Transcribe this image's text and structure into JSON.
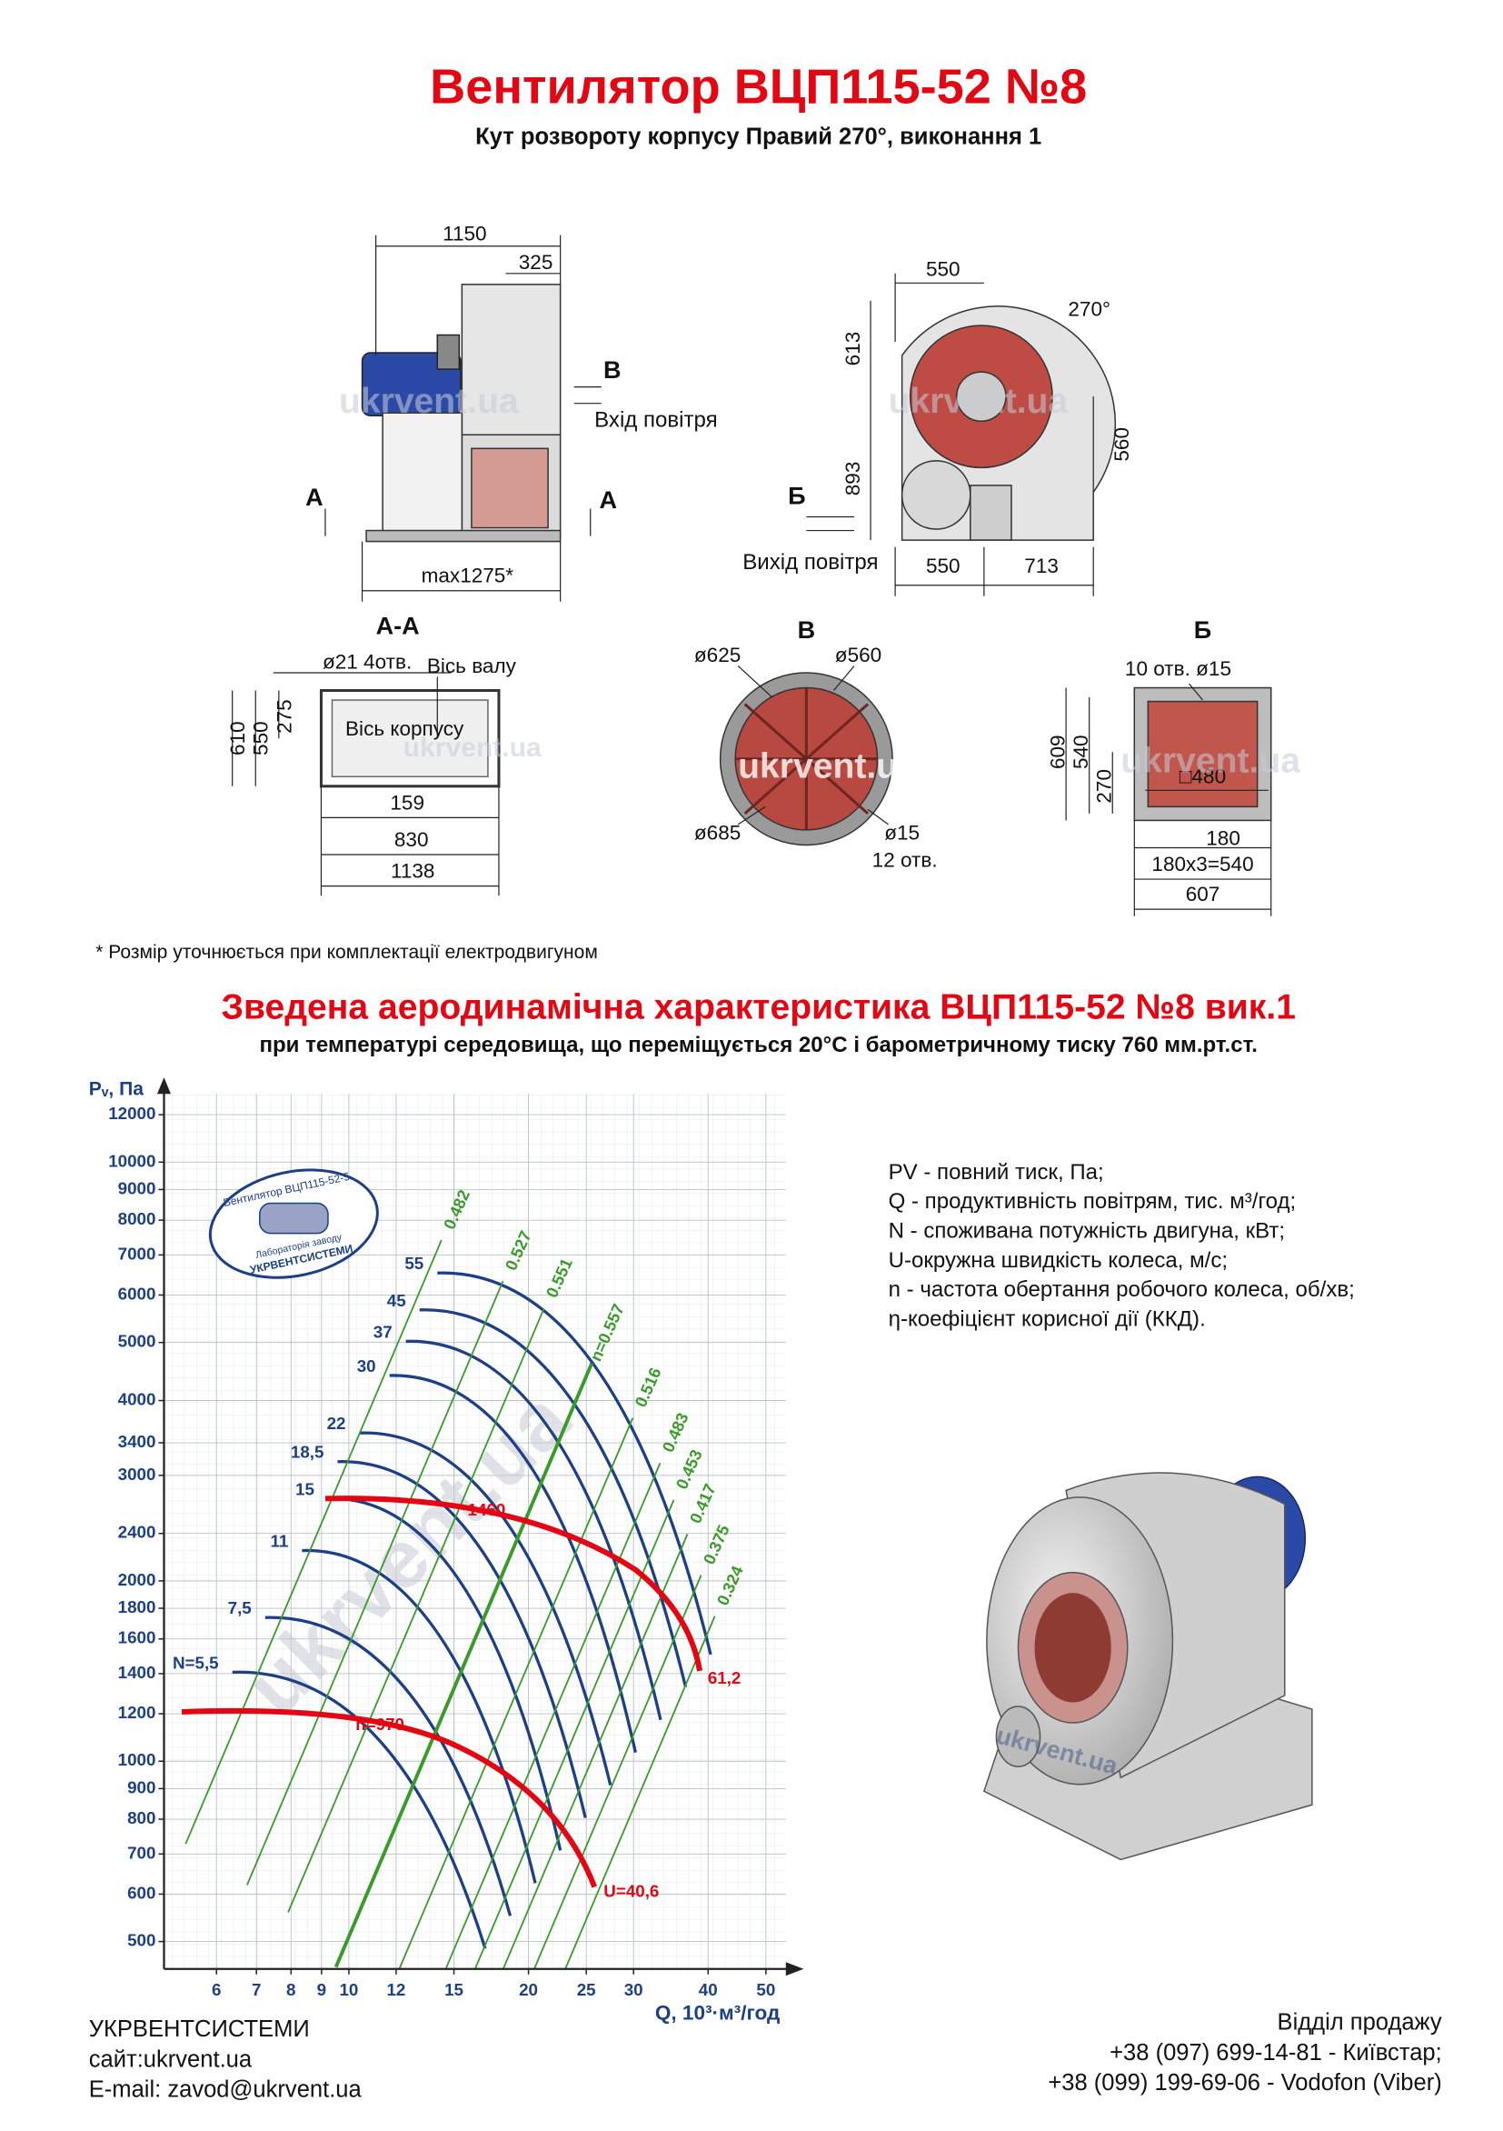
{
  "header": {
    "title": "Вентилятор  ВЦП115-52 №8",
    "subtitle": "Кут розвороту корпусу Правий 270°, виконання 1"
  },
  "side_view": {
    "dim_total": "1150",
    "dim_inlet": "325",
    "dim_max": "max1275*",
    "arrow_v": "В",
    "air_in": "Вхід повітря",
    "section_a": "А"
  },
  "front_view": {
    "dim_top": "550",
    "angle": "270°",
    "dim_upper": "613",
    "dim_lower": "893",
    "dim_outlet_h": "560",
    "arrow_b": "Б",
    "air_out": "Вихід повітря",
    "dim_base_left": "550",
    "dim_base_right": "713"
  },
  "section_aa": {
    "title": "А-А",
    "holes": "ø21 4отв.",
    "shaft_axis": "Вісь валу",
    "body_axis": "Вісь корпусу",
    "h_total": "610",
    "h_inner": "550",
    "h_axis": "275",
    "w_offset": "159",
    "w_inner": "830",
    "w_total": "1138"
  },
  "view_v": {
    "title": "В",
    "d_outer": "ø625",
    "d_inner": "ø560",
    "d_bolt": "ø685",
    "d_hole": "ø15",
    "holes": "12 отв."
  },
  "view_b": {
    "title": "Б",
    "holes": "10 отв. ø15",
    "h_total": "609",
    "h_inner": "540",
    "h_half": "270",
    "opening": "□480",
    "pitch": "180",
    "pitch_total": "180x3=540",
    "w_total": "607"
  },
  "note": "* Розмір уточнюється при комплектації електродвигуном",
  "watermark": "ukrvent.ua",
  "chart": {
    "title": "Зведена аеродинамічна характеристика ВЦП115-52 №8 вик.1",
    "subtitle": "при температурі середовища, що переміщується 20°C і барометричному тиску 760 мм.рт.ст.",
    "y_label": "Pᵥ, Па",
    "x_label": "Q, 10³·м³/год",
    "log_x": true,
    "log_y": true,
    "xlim": [
      4.9,
      54
    ],
    "ylim": [
      450,
      13000
    ],
    "xticks": [
      6,
      7,
      8,
      9,
      10,
      12,
      15,
      20,
      25,
      30,
      40,
      50
    ],
    "yticks": [
      500,
      600,
      700,
      800,
      900,
      1000,
      1200,
      1400,
      1600,
      1800,
      2000,
      2400,
      3000,
      3400,
      4000,
      5000,
      6000,
      7000,
      8000,
      9000,
      10000,
      12000
    ],
    "power_labels": [
      "55",
      "45",
      "37",
      "30",
      "22",
      "18,5",
      "15",
      "11",
      "7,5",
      "N=5,5"
    ],
    "efficiency_labels": [
      "0.482",
      "0.527",
      "0.551",
      "n=0.557",
      "0.516",
      "0.483",
      "0.453",
      "0.417",
      "0.375",
      "0.324"
    ],
    "speed_labels": [
      "1460",
      "n=970"
    ],
    "end_labels": [
      "61,2",
      "U=40,6"
    ],
    "stamp": [
      "Вентилятор ВЦП115-52-5",
      "Лабораторія заводу",
      "УКРВЕНТСИСТЕМИ"
    ]
  },
  "legend": [
    "PV - повний тиск, Па;",
    "Q - продуктивність повітрям, тис. м³/год;",
    "N - споживана потужність двигуна, кВт;",
    "U-окружна швидкість колеса, м/с;",
    "n - частота обертання робочого колеса, об/хв;",
    "η-коефіцієнт корисної дії (ККД)."
  ],
  "footer": {
    "company": "УКРВЕНТСИСТЕМИ",
    "site": "сайт:ukrvent.ua",
    "email": "E-mail: zavod@ukrvent.ua",
    "sales_title": "Відділ продажу",
    "phone1": "+38 (097) 699-14-81 - Київстар;",
    "phone2": "+38 (099) 199-69-06 - Vodofon (Viber)"
  }
}
